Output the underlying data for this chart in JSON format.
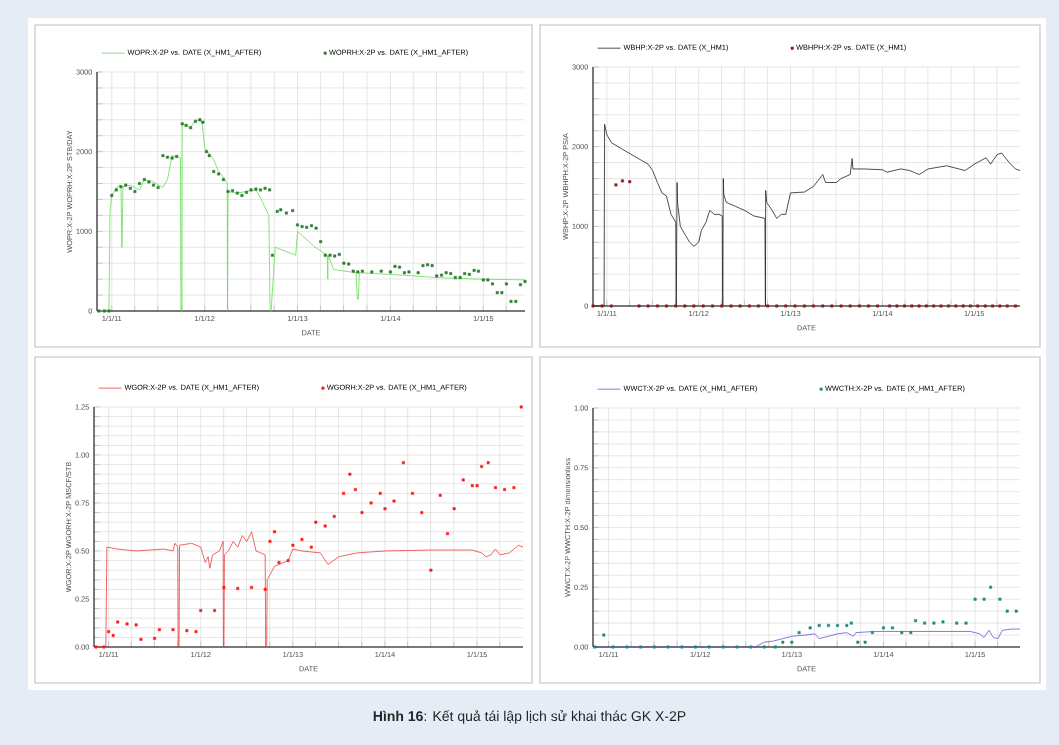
{
  "chart_data": [
    {
      "type": "line",
      "xlabel": "DATE",
      "ylabel": "WOPR:X-2P  WOPRH:X-2P  STB/DAY",
      "annotations": [
        "**Hình 16**: Kết quả tái lập lịch sử khai thác GK X-2P"
      ],
      "legend": "top",
      "grid": true,
      "xlim": [
        "2010-11-04",
        "2015-06-14"
      ],
      "ylim": [
        0,
        3000
      ],
      "xticks": [
        {
          "value": "2011-01-01",
          "label": "1/1/11"
        },
        {
          "value": "2011-04-01",
          "label": null
        },
        {
          "value": "2011-07-01",
          "label": null
        },
        {
          "value": "2011-10-01",
          "label": null
        },
        {
          "value": "2012-01-01",
          "label": "1/1/12"
        },
        {
          "value": "2012-04-01",
          "label": null
        },
        {
          "value": "2012-07-01",
          "label": null
        },
        {
          "value": "2012-10-01",
          "label": null
        },
        {
          "value": "2013-01-01",
          "label": "1/1/13"
        },
        {
          "value": "2013-04-01",
          "label": null
        },
        {
          "value": "2013-07-01",
          "label": null
        },
        {
          "value": "2013-10-01",
          "label": null
        },
        {
          "value": "2014-01-01",
          "label": "1/1/14"
        },
        {
          "value": "2014-04-01",
          "label": null
        },
        {
          "value": "2014-07-01",
          "label": null
        },
        {
          "value": "2014-10-01",
          "label": null
        },
        {
          "value": "2015-01-01",
          "label": "1/1/15"
        },
        {
          "value": "2015-04-01",
          "label": null
        }
      ],
      "yticks": [
        0,
        {
          "value": 200,
          "label": null
        },
        {
          "value": 400,
          "label": null
        },
        {
          "value": 600,
          "label": null
        },
        {
          "value": 800,
          "label": null
        },
        1000,
        {
          "value": 1200,
          "label": null
        },
        {
          "value": 1400,
          "label": null
        },
        {
          "value": 1600,
          "label": null
        },
        {
          "value": 1800,
          "label": null
        },
        2000,
        {
          "value": 2200,
          "label": null
        },
        {
          "value": 2400,
          "label": null
        },
        {
          "value": 2600,
          "label": null
        },
        {
          "value": 2800,
          "label": null
        },
        3000
      ],
      "series": [
        {
          "name": "WOPR:X-2P vs. DATE (X_HM1_AFTER)",
          "color": "#66dd55",
          "x": [
            "2010-11-04",
            "2010-12-21",
            "2010-12-25",
            "2011-01-01",
            "2011-01-19",
            "2011-02-06",
            "2011-02-10",
            "2011-02-14",
            "2011-03-15",
            "2011-04-20",
            "2011-05-09",
            "2011-06-14",
            "2011-07-21",
            "2011-08-08",
            "2011-08-26",
            "2011-09-28",
            "2011-09-30",
            "2011-10-04",
            "2011-10-05",
            "2011-11-07",
            "2011-11-26",
            "2011-12-21",
            "2012-01-01",
            "2012-02-06",
            "2012-02-25",
            "2012-03-15",
            "2012-03-30",
            "2012-03-31",
            "2012-04-02",
            "2012-05-09",
            "2012-06-14",
            "2012-07-21",
            "2012-08-08",
            "2012-09-10",
            "2012-09-15",
            "2012-09-19",
            "2012-10-05",
            "2012-12-25",
            "2013-01-01",
            "2013-03-11",
            "2013-04-28",
            "2013-04-30",
            "2013-05-01",
            "2013-05-23",
            "2013-08-19",
            "2013-08-24",
            "2013-08-28",
            "2013-09-01",
            "2014-02-17",
            "2014-06-29",
            "2014-12-17",
            "2015-06-14"
          ],
          "values": [
            0,
            0,
            1250,
            1450,
            1550,
            1580,
            800,
            1560,
            1580,
            1520,
            1650,
            1620,
            1550,
            1650,
            1950,
            1920,
            0,
            0,
            2350,
            2300,
            2400,
            2380,
            2050,
            1900,
            1750,
            1680,
            1600,
            0,
            1500,
            1480,
            1500,
            1520,
            1420,
            1200,
            0,
            0,
            800,
            700,
            1000,
            800,
            700,
            400,
            700,
            520,
            480,
            150,
            150,
            480,
            450,
            420,
            400,
            390
          ]
        },
        {
          "name": "WOPRH:X-2P vs. DATE (X_HM1_AFTER)",
          "type": "scatter",
          "marker": "square",
          "color": "#2e7d32",
          "x": [
            "2010-11-11",
            "2010-12-03",
            "2010-12-21",
            "2011-01-01",
            "2011-01-19",
            "2011-02-06",
            "2011-02-25",
            "2011-03-15",
            "2011-04-02",
            "2011-04-20",
            "2011-05-09",
            "2011-05-27",
            "2011-06-14",
            "2011-07-02",
            "2011-07-21",
            "2011-08-08",
            "2011-08-26",
            "2011-09-13",
            "2011-10-05",
            "2011-10-20",
            "2011-11-07",
            "2011-11-26",
            "2011-12-13",
            "2011-12-25",
            "2012-01-08",
            "2012-01-19",
            "2012-02-06",
            "2012-02-25",
            "2012-03-15",
            "2012-04-02",
            "2012-04-20",
            "2012-05-09",
            "2012-05-27",
            "2012-06-14",
            "2012-07-02",
            "2012-07-21",
            "2012-08-08",
            "2012-08-26",
            "2012-09-13",
            "2012-09-24",
            "2012-10-13",
            "2012-10-27",
            "2012-11-18",
            "2012-12-13",
            "2013-01-01",
            "2013-01-19",
            "2013-02-06",
            "2013-02-25",
            "2013-03-15",
            "2013-04-02",
            "2013-04-20",
            "2013-05-09",
            "2013-05-27",
            "2013-06-14",
            "2013-07-02",
            "2013-07-21",
            "2013-08-08",
            "2013-08-26",
            "2013-09-13",
            "2013-10-20",
            "2013-11-26",
            "2014-01-01",
            "2014-01-19",
            "2014-02-06",
            "2014-02-25",
            "2014-03-15",
            "2014-04-20",
            "2014-05-09",
            "2014-05-27",
            "2014-06-14",
            "2014-07-02",
            "2014-07-21",
            "2014-08-08",
            "2014-08-26",
            "2014-09-13",
            "2014-10-02",
            "2014-10-20",
            "2014-11-07",
            "2014-11-26",
            "2014-12-13",
            "2015-01-01",
            "2015-01-19",
            "2015-02-06",
            "2015-02-25",
            "2015-03-15",
            "2015-04-02",
            "2015-04-20",
            "2015-05-09",
            "2015-05-27",
            "2015-06-14"
          ],
          "values": [
            0,
            0,
            0,
            1450,
            1520,
            1560,
            1580,
            1540,
            1500,
            1600,
            1650,
            1620,
            1580,
            1550,
            1950,
            1930,
            1920,
            1940,
            2350,
            2330,
            2300,
            2380,
            2400,
            2370,
            2000,
            1950,
            1750,
            1720,
            1650,
            1500,
            1510,
            1480,
            1450,
            1490,
            1520,
            1530,
            1520,
            1540,
            1520,
            700,
            1250,
            1270,
            1230,
            1260,
            1080,
            1060,
            1050,
            1070,
            1040,
            870,
            700,
            700,
            690,
            710,
            600,
            590,
            500,
            490,
            500,
            490,
            500,
            490,
            560,
            550,
            480,
            490,
            480,
            570,
            580,
            570,
            440,
            450,
            480,
            470,
            420,
            420,
            470,
            460,
            510,
            500,
            390,
            390,
            340,
            230,
            230,
            340,
            120,
            120,
            330,
            370
          ]
        }
      ]
    },
    {
      "type": "line",
      "xlabel": "DATE",
      "ylabel": "WBHP:X-2P  WBHPH:X-2P  PSIA",
      "legend": "top",
      "grid": true,
      "xlim": [
        "2010-11-07",
        "2015-07-02"
      ],
      "ylim": [
        0,
        3000
      ],
      "xticks": [
        {
          "value": "2011-01-01",
          "label": "1/1/11"
        },
        {
          "value": "2011-04-01",
          "label": null
        },
        {
          "value": "2011-07-01",
          "label": null
        },
        {
          "value": "2011-10-01",
          "label": null
        },
        {
          "value": "2012-01-01",
          "label": "1/1/12"
        },
        {
          "value": "2012-04-01",
          "label": null
        },
        {
          "value": "2012-07-01",
          "label": null
        },
        {
          "value": "2012-10-01",
          "label": null
        },
        {
          "value": "2013-01-01",
          "label": "1/1/13"
        },
        {
          "value": "2013-04-01",
          "label": null
        },
        {
          "value": "2013-07-01",
          "label": null
        },
        {
          "value": "2013-10-01",
          "label": null
        },
        {
          "value": "2014-01-01",
          "label": "1/1/14"
        },
        {
          "value": "2014-04-01",
          "label": null
        },
        {
          "value": "2014-07-01",
          "label": null
        },
        {
          "value": "2014-10-01",
          "label": null
        },
        {
          "value": "2015-01-01",
          "label": "1/1/15"
        },
        {
          "value": "2015-04-01",
          "label": null
        }
      ],
      "yticks": [
        0,
        {
          "value": 200,
          "label": null
        },
        {
          "value": 400,
          "label": null
        },
        {
          "value": 600,
          "label": null
        },
        {
          "value": 800,
          "label": null
        },
        1000,
        {
          "value": 1200,
          "label": null
        },
        {
          "value": 1400,
          "label": null
        },
        {
          "value": 1600,
          "label": null
        },
        {
          "value": 1800,
          "label": null
        },
        2000,
        {
          "value": 2200,
          "label": null
        },
        {
          "value": 2400,
          "label": null
        },
        {
          "value": 2600,
          "label": null
        },
        {
          "value": 2800,
          "label": null
        },
        3000
      ],
      "series": [
        {
          "name": "WBHP:X-2P vs. DATE (X_HM1)",
          "color": "#222222",
          "x": [
            "2010-11-07",
            "2010-12-21",
            "2010-12-23",
            "2011-01-01",
            "2011-01-19",
            "2011-02-25",
            "2011-04-20",
            "2011-06-14",
            "2011-07-02",
            "2011-07-21",
            "2011-08-08",
            "2011-08-26",
            "2011-09-13",
            "2011-10-02",
            "2011-10-04",
            "2011-10-07",
            "2011-10-09",
            "2011-10-20",
            "2011-11-07",
            "2011-11-26",
            "2011-12-13",
            "2012-01-01",
            "2012-01-12",
            "2012-01-30",
            "2012-02-14",
            "2012-03-04",
            "2012-03-22",
            "2012-04-04",
            "2012-04-06",
            "2012-04-08",
            "2012-04-10",
            "2012-04-20",
            "2012-05-27",
            "2012-07-02",
            "2012-08-08",
            "2012-09-21",
            "2012-09-23",
            "2012-09-24",
            "2012-09-28",
            "2012-10-20",
            "2012-11-07",
            "2012-11-26",
            "2012-12-13",
            "2013-01-01",
            "2013-02-25",
            "2013-04-02",
            "2013-05-09",
            "2013-05-20",
            "2013-07-02",
            "2013-07-21",
            "2013-08-26",
            "2013-09-03",
            "2013-09-06",
            "2013-10-20",
            "2014-01-01",
            "2014-01-19",
            "2014-03-15",
            "2014-04-20",
            "2014-05-27",
            "2014-07-02",
            "2014-09-13",
            "2014-11-26",
            "2015-01-01",
            "2015-02-17",
            "2015-03-07",
            "2015-04-02",
            "2015-04-20",
            "2015-05-20",
            "2015-06-14",
            "2015-07-02"
          ],
          "values": [
            0,
            0,
            2280,
            2150,
            2050,
            1980,
            1880,
            1780,
            1700,
            1550,
            1420,
            1380,
            1150,
            1050,
            0,
            1550,
            1300,
            1000,
            900,
            800,
            750,
            800,
            950,
            1050,
            1200,
            1150,
            1150,
            1130,
            0,
            1600,
            1400,
            1300,
            1250,
            1200,
            1130,
            1100,
            0,
            1450,
            1300,
            1200,
            1100,
            1150,
            1150,
            1420,
            1430,
            1500,
            1650,
            1550,
            1550,
            1600,
            1650,
            1850,
            1720,
            1720,
            1710,
            1680,
            1720,
            1700,
            1650,
            1720,
            1760,
            1700,
            1780,
            1860,
            1780,
            1900,
            1920,
            1800,
            1720,
            1700
          ]
        },
        {
          "name": "WBHPH:X-2P vs. DATE (X_HM1)",
          "type": "scatter",
          "marker": "square",
          "color": "#8b1a1a",
          "x": [
            "2010-11-07",
            "2010-12-13",
            "2011-01-19",
            "2011-02-06",
            "2011-03-04",
            "2011-04-02",
            "2011-05-09",
            "2011-06-14",
            "2011-07-21",
            "2011-08-26",
            "2011-10-02",
            "2011-11-07",
            "2011-12-13",
            "2012-01-19",
            "2012-02-25",
            "2012-04-02",
            "2012-05-09",
            "2012-06-14",
            "2012-07-21",
            "2012-08-26",
            "2012-10-02",
            "2012-11-07",
            "2012-12-13",
            "2013-01-19",
            "2013-02-25",
            "2013-04-02",
            "2013-05-09",
            "2013-06-14",
            "2013-07-21",
            "2013-08-26",
            "2013-10-02",
            "2013-11-07",
            "2013-12-13",
            "2014-01-30",
            "2014-02-28",
            "2014-03-30",
            "2014-04-28",
            "2014-05-27",
            "2014-06-25",
            "2014-07-24",
            "2014-08-22",
            "2014-09-21",
            "2014-10-20",
            "2014-11-18",
            "2014-12-17",
            "2015-01-15",
            "2015-02-14",
            "2015-03-15",
            "2015-04-13",
            "2015-05-12",
            "2015-06-14"
          ],
          "values": [
            0,
            0,
            0,
            1520,
            1570,
            1560,
            0,
            0,
            0,
            0,
            0,
            0,
            0,
            0,
            0,
            0,
            0,
            0,
            0,
            0,
            0,
            0,
            0,
            0,
            0,
            0,
            0,
            0,
            0,
            0,
            0,
            0,
            0,
            0,
            0,
            0,
            0,
            0,
            0,
            0,
            0,
            0,
            0,
            0,
            0,
            0,
            0,
            0,
            0,
            0,
            0
          ]
        }
      ]
    },
    {
      "type": "line",
      "xlabel": "DATE",
      "ylabel": "WGOR:X-2P  WGORH:X-2P  MSCF/STB",
      "legend": "top",
      "grid": true,
      "xlim": [
        "2010-11-04",
        "2015-07-02"
      ],
      "ylim": [
        0,
        1.25
      ],
      "xticks": [
        {
          "value": "2011-01-01",
          "label": "1/1/11"
        },
        {
          "value": "2011-04-01",
          "label": null
        },
        {
          "value": "2011-07-01",
          "label": null
        },
        {
          "value": "2011-10-01",
          "label": null
        },
        {
          "value": "2012-01-01",
          "label": "1/1/12"
        },
        {
          "value": "2012-04-01",
          "label": null
        },
        {
          "value": "2012-07-01",
          "label": null
        },
        {
          "value": "2012-10-01",
          "label": null
        },
        {
          "value": "2013-01-01",
          "label": "1/1/13"
        },
        {
          "value": "2013-04-01",
          "label": null
        },
        {
          "value": "2013-07-01",
          "label": null
        },
        {
          "value": "2013-10-01",
          "label": null
        },
        {
          "value": "2014-01-01",
          "label": "1/1/14"
        },
        {
          "value": "2014-04-01",
          "label": null
        },
        {
          "value": "2014-07-01",
          "label": null
        },
        {
          "value": "2014-10-01",
          "label": null
        },
        {
          "value": "2015-01-01",
          "label": "1/1/15"
        },
        {
          "value": "2015-04-01",
          "label": null
        }
      ],
      "yticks": [
        {
          "value": 0,
          "label": "0.00"
        },
        {
          "value": 0.05,
          "label": null
        },
        {
          "value": 0.1,
          "label": null
        },
        {
          "value": 0.15,
          "label": null
        },
        {
          "value": 0.2,
          "label": null
        },
        {
          "value": 0.25,
          "label": "0.25"
        },
        {
          "value": 0.3,
          "label": null
        },
        {
          "value": 0.35,
          "label": null
        },
        {
          "value": 0.4,
          "label": null
        },
        {
          "value": 0.45,
          "label": null
        },
        {
          "value": 0.5,
          "label": "0.50"
        },
        {
          "value": 0.55,
          "label": null
        },
        {
          "value": 0.6,
          "label": null
        },
        {
          "value": 0.65,
          "label": null
        },
        {
          "value": 0.7,
          "label": null
        },
        {
          "value": 0.75,
          "label": "0.75"
        },
        {
          "value": 0.8,
          "label": null
        },
        {
          "value": 0.85,
          "label": null
        },
        {
          "value": 0.9,
          "label": null
        },
        {
          "value": 0.95,
          "label": null
        },
        {
          "value": 1.0,
          "label": "1.00"
        },
        {
          "value": 1.05,
          "label": null
        },
        {
          "value": 1.1,
          "label": null
        },
        {
          "value": 1.15,
          "label": null
        },
        {
          "value": 1.2,
          "label": null
        },
        {
          "value": 1.25,
          "label": "1.25"
        }
      ],
      "series": [
        {
          "name": "WGOR:X-2P vs. DATE (X_HM1_AFTER)",
          "color": "#e84040",
          "x": [
            "2010-11-04",
            "2010-12-21",
            "2010-12-25",
            "2011-02-06",
            "2011-04-20",
            "2011-08-08",
            "2011-09-13",
            "2011-09-21",
            "2011-10-02",
            "2011-10-04",
            "2011-10-07",
            "2011-10-09",
            "2011-11-26",
            "2012-01-01",
            "2012-01-19",
            "2012-01-30",
            "2012-02-06",
            "2012-02-17",
            "2012-03-15",
            "2012-03-30",
            "2012-03-31",
            "2012-04-02",
            "2012-04-04",
            "2012-04-20",
            "2012-05-09",
            "2012-05-27",
            "2012-06-14",
            "2012-07-02",
            "2012-07-21",
            "2012-08-08",
            "2012-09-13",
            "2012-09-15",
            "2012-09-19",
            "2012-09-21",
            "2012-10-20",
            "2012-12-13",
            "2013-01-01",
            "2013-02-06",
            "2013-04-20",
            "2013-05-20",
            "2013-07-02",
            "2013-09-13",
            "2014-01-01",
            "2014-07-02",
            "2014-12-13",
            "2015-01-19",
            "2015-02-06",
            "2015-02-25",
            "2015-03-15",
            "2015-04-02",
            "2015-05-09",
            "2015-06-14",
            "2015-07-02"
          ],
          "values": [
            0,
            0,
            0.52,
            0.51,
            0.5,
            0.51,
            0.5,
            0.54,
            0.52,
            0,
            0,
            0.53,
            0.54,
            0.52,
            0.44,
            0.47,
            0.41,
            0.48,
            0.5,
            0.55,
            0,
            0,
            0.48,
            0.5,
            0.55,
            0.52,
            0.58,
            0.55,
            0.6,
            0.5,
            0.48,
            0,
            0,
            0.35,
            0.42,
            0.45,
            0.51,
            0.5,
            0.49,
            0.43,
            0.47,
            0.49,
            0.5,
            0.505,
            0.505,
            0.49,
            0.47,
            0.48,
            0.51,
            0.48,
            0.49,
            0.53,
            0.52
          ]
        },
        {
          "name": "WGORH:X-2P vs. DATE (X_HM1_AFTER)",
          "type": "scatter",
          "marker": "square",
          "color": "#ff1a1a",
          "x": [
            "2010-11-11",
            "2010-12-13",
            "2011-01-01",
            "2011-01-19",
            "2011-02-06",
            "2011-03-15",
            "2011-04-20",
            "2011-05-09",
            "2011-07-02",
            "2011-07-21",
            "2011-09-13",
            "2011-11-07",
            "2011-12-13",
            "2012-01-01",
            "2012-02-25",
            "2012-04-02",
            "2012-05-27",
            "2012-07-21",
            "2012-09-13",
            "2012-10-02",
            "2012-10-20",
            "2012-11-07",
            "2012-12-13",
            "2013-01-01",
            "2013-02-06",
            "2013-03-15",
            "2013-04-02",
            "2013-05-09",
            "2013-06-14",
            "2013-07-21",
            "2013-08-15",
            "2013-09-06",
            "2013-10-02",
            "2013-11-07",
            "2013-12-13",
            "2014-01-01",
            "2014-02-06",
            "2014-03-15",
            "2014-04-20",
            "2014-05-27",
            "2014-07-02",
            "2014-08-08",
            "2014-09-06",
            "2014-10-02",
            "2014-11-07",
            "2014-12-13",
            "2015-01-01",
            "2015-01-19",
            "2015-02-14",
            "2015-03-15",
            "2015-04-20",
            "2015-05-27",
            "2015-06-25"
          ],
          "values": [
            0,
            0,
            0.08,
            0.06,
            0.13,
            0.12,
            0.115,
            0.04,
            0.045,
            0.09,
            0.09,
            0.085,
            0.08,
            0.19,
            0.19,
            0.31,
            0.305,
            0.31,
            0.3,
            0.55,
            0.6,
            0.44,
            0.45,
            0.53,
            0.56,
            0.52,
            0.65,
            0.63,
            0.68,
            0.8,
            0.9,
            0.82,
            0.7,
            0.75,
            0.8,
            0.72,
            0.76,
            0.96,
            0.8,
            0.7,
            0.4,
            0.79,
            0.59,
            0.72,
            0.87,
            0.84,
            0.84,
            0.94,
            0.96,
            0.83,
            0.82,
            0.83,
            1.25
          ]
        }
      ]
    },
    {
      "type": "line",
      "xlabel": "DATE",
      "ylabel": "WWCT:X-2P  WWCTH:X-2P  dimensionless",
      "legend": "top",
      "grid": true,
      "xlim": [
        "2010-10-31",
        "2015-06-29"
      ],
      "ylim": [
        0,
        1
      ],
      "xticks": [
        {
          "value": "2011-01-01",
          "label": "1/1/11"
        },
        {
          "value": "2011-04-01",
          "label": null
        },
        {
          "value": "2011-07-01",
          "label": null
        },
        {
          "value": "2011-10-01",
          "label": null
        },
        {
          "value": "2012-01-01",
          "label": "1/1/12"
        },
        {
          "value": "2012-04-01",
          "label": null
        },
        {
          "value": "2012-07-01",
          "label": null
        },
        {
          "value": "2012-10-01",
          "label": null
        },
        {
          "value": "2013-01-01",
          "label": "1/1/13"
        },
        {
          "value": "2013-04-01",
          "label": null
        },
        {
          "value": "2013-07-01",
          "label": null
        },
        {
          "value": "2013-10-01",
          "label": null
        },
        {
          "value": "2014-01-01",
          "label": "1/1/14"
        },
        {
          "value": "2014-04-01",
          "label": null
        },
        {
          "value": "2014-07-01",
          "label": null
        },
        {
          "value": "2014-10-01",
          "label": null
        },
        {
          "value": "2015-01-01",
          "label": "1/1/15"
        },
        {
          "value": "2015-04-01",
          "label": null
        }
      ],
      "yticks": [
        {
          "value": 0,
          "label": "0.00"
        },
        {
          "value": 0.05,
          "label": null
        },
        {
          "value": 0.1,
          "label": null
        },
        {
          "value": 0.15,
          "label": null
        },
        {
          "value": 0.2,
          "label": null
        },
        {
          "value": 0.25,
          "label": "0.25"
        },
        {
          "value": 0.3,
          "label": null
        },
        {
          "value": 0.35,
          "label": null
        },
        {
          "value": 0.4,
          "label": null
        },
        {
          "value": 0.45,
          "label": null
        },
        {
          "value": 0.5,
          "label": "0.50"
        },
        {
          "value": 0.55,
          "label": null
        },
        {
          "value": 0.6,
          "label": null
        },
        {
          "value": 0.65,
          "label": null
        },
        {
          "value": 0.7,
          "label": null
        },
        {
          "value": 0.75,
          "label": "0.75"
        },
        {
          "value": 0.8,
          "label": null
        },
        {
          "value": 0.85,
          "label": null
        },
        {
          "value": 0.9,
          "label": null
        },
        {
          "value": 0.95,
          "label": null
        },
        {
          "value": 1.0,
          "label": "1.00"
        }
      ],
      "series": [
        {
          "name": "WWCT:X-2P vs. DATE (X_HM1_AFTER)",
          "color": "#6655dd",
          "x": [
            "2010-10-31",
            "2012-08-08",
            "2012-09-13",
            "2012-10-20",
            "2012-11-26",
            "2013-01-01",
            "2013-02-25",
            "2013-04-02",
            "2013-04-20",
            "2013-05-27",
            "2013-07-02",
            "2013-08-08",
            "2013-09-03",
            "2013-09-13",
            "2013-11-26",
            "2014-01-01",
            "2014-07-02",
            "2014-12-13",
            "2015-01-19",
            "2015-02-06",
            "2015-02-25",
            "2015-03-15",
            "2015-04-02",
            "2015-04-20",
            "2015-05-27",
            "2015-06-29"
          ],
          "values": [
            0,
            0,
            0.02,
            0.025,
            0.035,
            0.045,
            0.05,
            0.055,
            0.035,
            0.045,
            0.055,
            0.06,
            0.045,
            0.06,
            0.065,
            0.065,
            0.065,
            0.065,
            0.055,
            0.04,
            0.07,
            0.04,
            0.035,
            0.07,
            0.075,
            0.075
          ]
        },
        {
          "name": "WWCTH:X-2P vs. DATE (X_HM1_AFTER)",
          "type": "scatter",
          "marker": "square",
          "color": "#1f8a7a",
          "x": [
            "2010-11-07",
            "2010-12-13",
            "2011-01-19",
            "2011-03-15",
            "2011-05-09",
            "2011-07-02",
            "2011-08-26",
            "2011-10-20",
            "2011-12-13",
            "2012-02-06",
            "2012-04-02",
            "2012-05-27",
            "2012-07-21",
            "2012-09-13",
            "2012-10-27",
            "2012-11-26",
            "2013-01-01",
            "2013-01-30",
            "2013-03-15",
            "2013-04-20",
            "2013-05-27",
            "2013-07-02",
            "2013-08-08",
            "2013-08-26",
            "2013-09-21",
            "2013-10-20",
            "2013-11-18",
            "2014-01-01",
            "2014-02-06",
            "2014-03-15",
            "2014-04-20",
            "2014-05-09",
            "2014-06-14",
            "2014-07-21",
            "2014-08-26",
            "2014-10-20",
            "2014-11-26",
            "2015-01-01",
            "2015-02-06",
            "2015-03-04",
            "2015-04-10",
            "2015-05-09",
            "2015-06-14"
          ],
          "values": [
            0,
            0.05,
            0,
            0,
            0,
            0,
            0,
            0,
            0,
            0,
            0,
            0,
            0,
            0,
            0,
            0.02,
            0.02,
            0.06,
            0.08,
            0.09,
            0.09,
            0.09,
            0.09,
            0.1,
            0.02,
            0.02,
            0.06,
            0.08,
            0.08,
            0.06,
            0.06,
            0.11,
            0.1,
            0.1,
            0.105,
            0.1,
            0.1,
            0.2,
            0.2,
            0.25,
            0.2,
            0.15,
            0.15
          ]
        }
      ]
    }
  ]
}
